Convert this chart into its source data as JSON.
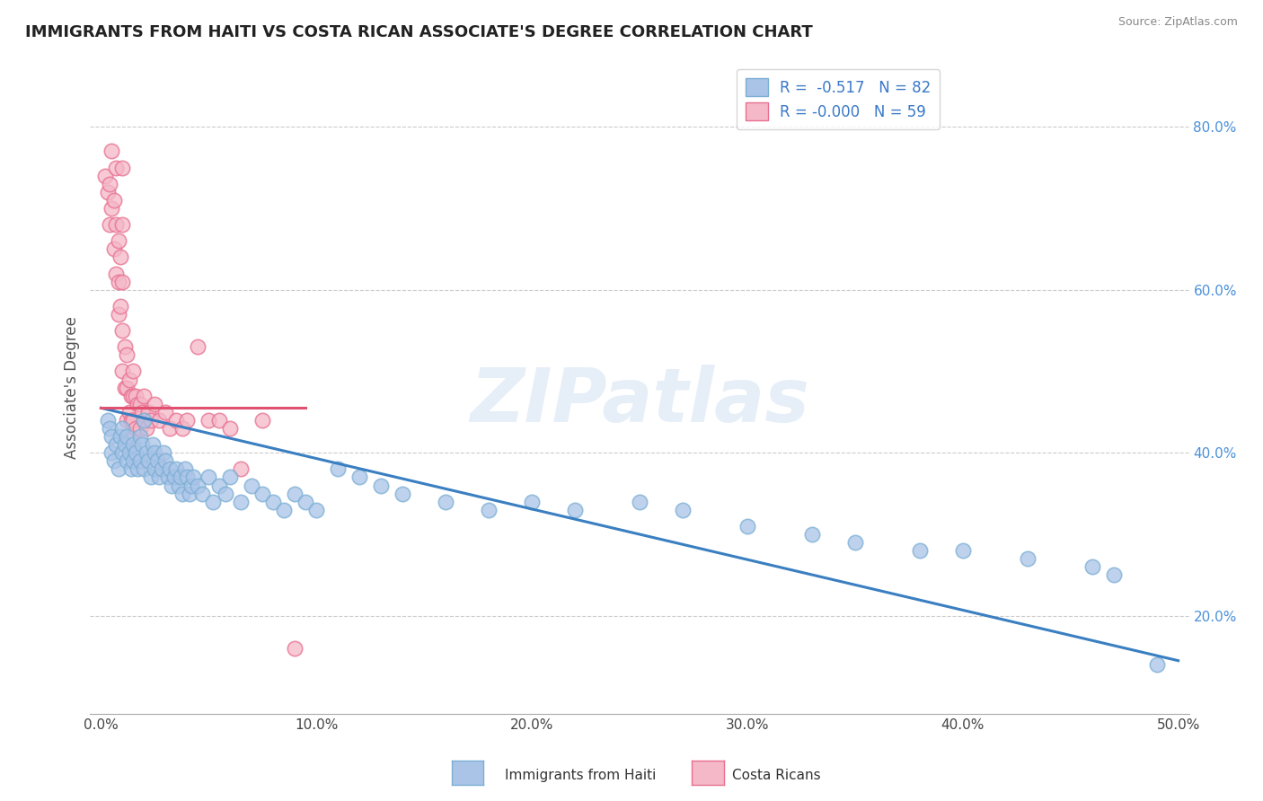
{
  "title": "IMMIGRANTS FROM HAITI VS COSTA RICAN ASSOCIATE'S DEGREE CORRELATION CHART",
  "source": "Source: ZipAtlas.com",
  "ylabel": "Associate's Degree",
  "xlim": [
    -0.005,
    0.505
  ],
  "ylim": [
    0.08,
    0.88
  ],
  "xticks": [
    0.0,
    0.1,
    0.2,
    0.3,
    0.4,
    0.5
  ],
  "xticklabels": [
    "0.0%",
    "10.0%",
    "20.0%",
    "30.0%",
    "40.0%",
    "50.0%"
  ],
  "yticks": [
    0.2,
    0.4,
    0.6,
    0.8
  ],
  "yticklabels": [
    "20.0%",
    "40.0%",
    "60.0%",
    "80.0%"
  ],
  "series1_name": "Immigrants from Haiti",
  "series1_color": "#7bafd4",
  "series1_fill_color": "#aac4e8",
  "series1_R": -0.517,
  "series1_N": 82,
  "series1_x": [
    0.003,
    0.004,
    0.005,
    0.005,
    0.006,
    0.007,
    0.008,
    0.009,
    0.01,
    0.01,
    0.011,
    0.012,
    0.012,
    0.013,
    0.014,
    0.015,
    0.015,
    0.016,
    0.017,
    0.018,
    0.018,
    0.019,
    0.02,
    0.02,
    0.021,
    0.022,
    0.023,
    0.024,
    0.025,
    0.025,
    0.026,
    0.027,
    0.028,
    0.029,
    0.03,
    0.031,
    0.032,
    0.033,
    0.034,
    0.035,
    0.036,
    0.037,
    0.038,
    0.039,
    0.04,
    0.041,
    0.042,
    0.043,
    0.045,
    0.047,
    0.05,
    0.052,
    0.055,
    0.058,
    0.06,
    0.065,
    0.07,
    0.075,
    0.08,
    0.085,
    0.09,
    0.095,
    0.1,
    0.11,
    0.12,
    0.13,
    0.14,
    0.16,
    0.18,
    0.2,
    0.22,
    0.25,
    0.27,
    0.3,
    0.33,
    0.35,
    0.38,
    0.4,
    0.43,
    0.46,
    0.47,
    0.49
  ],
  "series1_y": [
    0.44,
    0.43,
    0.42,
    0.4,
    0.39,
    0.41,
    0.38,
    0.42,
    0.43,
    0.4,
    0.41,
    0.39,
    0.42,
    0.4,
    0.38,
    0.41,
    0.39,
    0.4,
    0.38,
    0.42,
    0.39,
    0.41,
    0.44,
    0.38,
    0.4,
    0.39,
    0.37,
    0.41,
    0.4,
    0.38,
    0.39,
    0.37,
    0.38,
    0.4,
    0.39,
    0.37,
    0.38,
    0.36,
    0.37,
    0.38,
    0.36,
    0.37,
    0.35,
    0.38,
    0.37,
    0.35,
    0.36,
    0.37,
    0.36,
    0.35,
    0.37,
    0.34,
    0.36,
    0.35,
    0.37,
    0.34,
    0.36,
    0.35,
    0.34,
    0.33,
    0.35,
    0.34,
    0.33,
    0.38,
    0.37,
    0.36,
    0.35,
    0.34,
    0.33,
    0.34,
    0.33,
    0.34,
    0.33,
    0.31,
    0.3,
    0.29,
    0.28,
    0.28,
    0.27,
    0.26,
    0.25,
    0.14
  ],
  "series1_trend_x": [
    0.0,
    0.5
  ],
  "series1_trend_y": [
    0.455,
    0.145
  ],
  "series2_name": "Costa Ricans",
  "series2_color": "#e87090",
  "series2_fill_color": "#f4b8c8",
  "series2_R": 0.0,
  "series2_N": 59,
  "series2_x": [
    0.002,
    0.003,
    0.004,
    0.004,
    0.005,
    0.005,
    0.006,
    0.006,
    0.007,
    0.007,
    0.007,
    0.008,
    0.008,
    0.008,
    0.009,
    0.009,
    0.01,
    0.01,
    0.01,
    0.01,
    0.01,
    0.011,
    0.011,
    0.012,
    0.012,
    0.012,
    0.013,
    0.013,
    0.014,
    0.014,
    0.014,
    0.015,
    0.015,
    0.015,
    0.016,
    0.016,
    0.017,
    0.018,
    0.018,
    0.019,
    0.02,
    0.02,
    0.021,
    0.022,
    0.023,
    0.025,
    0.027,
    0.03,
    0.032,
    0.035,
    0.038,
    0.04,
    0.045,
    0.05,
    0.055,
    0.06,
    0.065,
    0.075,
    0.09
  ],
  "series2_y": [
    0.74,
    0.72,
    0.73,
    0.68,
    0.77,
    0.7,
    0.71,
    0.65,
    0.75,
    0.68,
    0.62,
    0.66,
    0.61,
    0.57,
    0.64,
    0.58,
    0.75,
    0.68,
    0.61,
    0.55,
    0.5,
    0.53,
    0.48,
    0.52,
    0.48,
    0.44,
    0.49,
    0.45,
    0.47,
    0.44,
    0.42,
    0.5,
    0.47,
    0.44,
    0.47,
    0.43,
    0.46,
    0.46,
    0.43,
    0.45,
    0.47,
    0.44,
    0.43,
    0.45,
    0.44,
    0.46,
    0.44,
    0.45,
    0.43,
    0.44,
    0.43,
    0.44,
    0.53,
    0.44,
    0.44,
    0.43,
    0.38,
    0.44,
    0.16
  ],
  "series2_trend_x": [
    0.0,
    0.095
  ],
  "series2_trend_y": [
    0.455,
    0.455
  ],
  "watermark": "ZIPatlas",
  "bg_color": "#ffffff",
  "grid_color": "#cccccc",
  "tick_color": "#444444",
  "title_color": "#222222",
  "axis_label_color": "#555555",
  "legend_r1": "R =  -0.517",
  "legend_n1": "N = 82",
  "legend_r2": "R = -0.000",
  "legend_n2": "N = 59",
  "trend1_color": "#3a7fc1",
  "trend2_color": "#e05070"
}
